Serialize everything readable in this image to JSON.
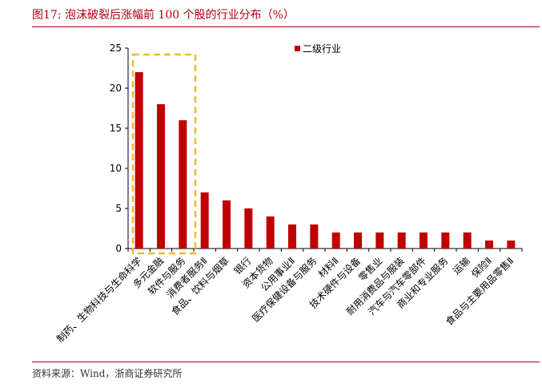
{
  "figure": {
    "title": "图17:  泡沫破裂后涨幅前 100 个股的行业分布（%）",
    "source": "资料来源：Wind，浙商证券研究所"
  },
  "colors": {
    "bar": "#c00000",
    "highlight_box": "#f5b82e",
    "title_red": "#b0000f"
  },
  "chart_data": {
    "type": "bar",
    "series": [
      {
        "name": "二级行业",
        "values": [
          22,
          18,
          16,
          7,
          6,
          5,
          4,
          3,
          3,
          2,
          2,
          2,
          2,
          2,
          2,
          2,
          1,
          1
        ]
      }
    ],
    "categories": [
      "制药、生物科技与生命科学",
      "多元金融",
      "软件与服务",
      "消费者服务Ⅱ",
      "食品、饮料与烟草",
      "银行",
      "资本货物",
      "公用事业Ⅱ",
      "医疗保健设备与服务",
      "材料Ⅱ",
      "技术硬件与设备",
      "零售业",
      "耐用消费品与服装",
      "汽车与汽车零部件",
      "商业和专业服务",
      "运输",
      "保险Ⅱ",
      "食品与主要用品零售Ⅱ"
    ],
    "yticks": [
      "0",
      "5",
      "10",
      "15",
      "20",
      "25"
    ],
    "ylim": [
      0,
      25
    ],
    "legend_position": "top",
    "grid": false,
    "highlight": {
      "from_index": 0,
      "to_index": 2,
      "style": "dashed-box"
    }
  }
}
